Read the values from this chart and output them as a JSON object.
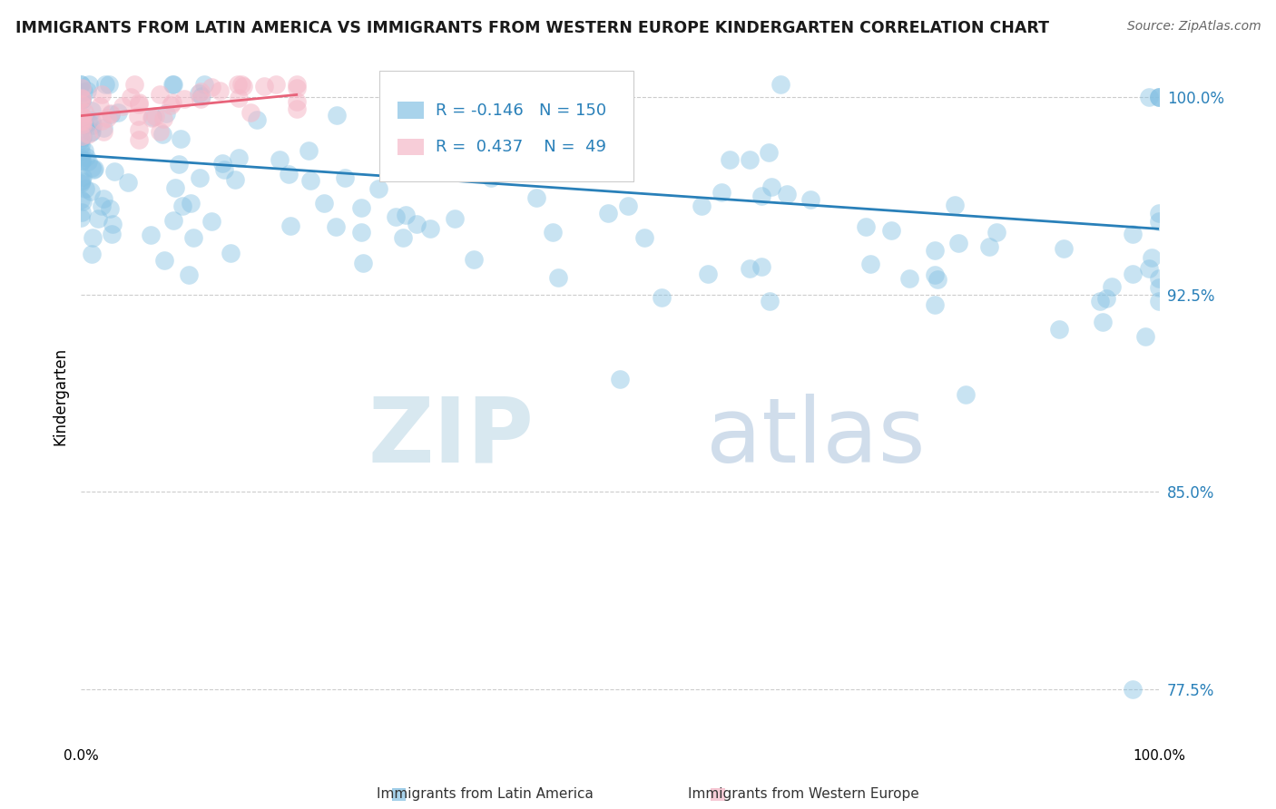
{
  "title": "IMMIGRANTS FROM LATIN AMERICA VS IMMIGRANTS FROM WESTERN EUROPE KINDERGARTEN CORRELATION CHART",
  "source": "Source: ZipAtlas.com",
  "ylabel": "Kindergarten",
  "legend_labels": [
    "Immigrants from Latin America",
    "Immigrants from Western Europe"
  ],
  "blue_color": "#85c1e3",
  "pink_color": "#f5b8c8",
  "blue_line_color": "#2980b9",
  "pink_line_color": "#e8637a",
  "R_blue": -0.146,
  "N_blue": 150,
  "R_pink": 0.437,
  "N_pink": 49,
  "xlim": [
    0.0,
    1.0
  ],
  "ylim": [
    0.755,
    1.018
  ],
  "yticks": [
    0.775,
    0.85,
    0.925,
    1.0
  ],
  "ytick_labels": [
    "77.5%",
    "85.0%",
    "92.5%",
    "100.0%"
  ],
  "watermark_zip": "ZIP",
  "watermark_atlas": "atlas",
  "background_color": "#ffffff",
  "grid_color": "#cccccc",
  "title_fontsize": 12.5,
  "source_fontsize": 10,
  "blue_line_x": [
    0.0,
    1.0
  ],
  "blue_line_y": [
    0.978,
    0.95
  ],
  "pink_line_x": [
    0.0,
    0.2
  ],
  "pink_line_y": [
    0.993,
    1.001
  ]
}
